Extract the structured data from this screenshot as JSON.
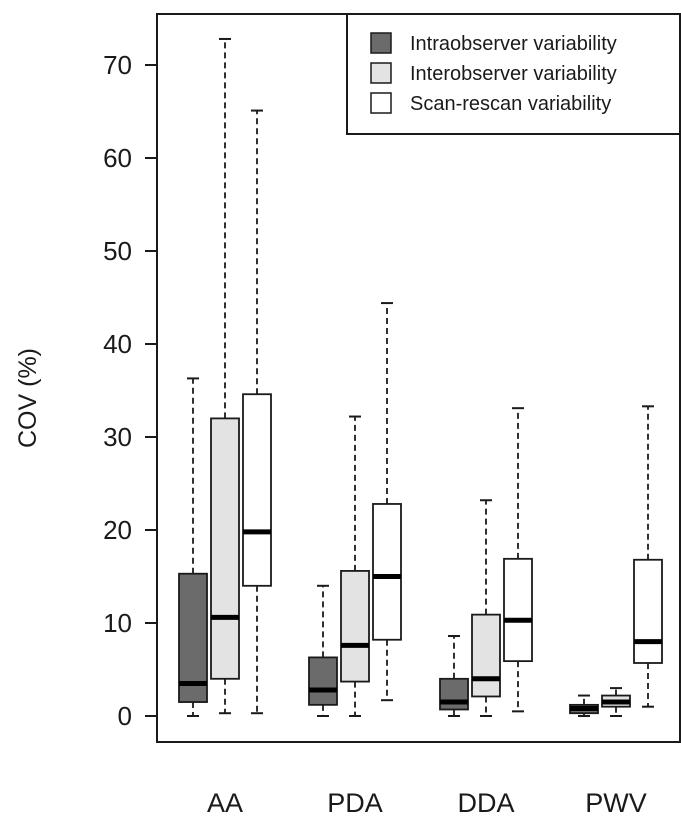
{
  "chart_data": {
    "type": "boxplot",
    "ylabel": "COV (%)",
    "ylim": [
      -2.5,
      75
    ],
    "yticks": [
      0,
      10,
      20,
      30,
      40,
      50,
      60,
      70
    ],
    "ytick_labels": [
      "0",
      "10",
      "20",
      "30",
      "40",
      "50",
      "60",
      "70"
    ],
    "categories": [
      "AA",
      "PDA",
      "DDA",
      "PWV"
    ],
    "legend_position": "top-right",
    "series": [
      {
        "name": "Intraobserver variability",
        "color": "#6b6b6b",
        "boxes": [
          {
            "min": 0,
            "q1": 1.5,
            "median": 3.5,
            "q3": 15.3,
            "max": 36.3
          },
          {
            "min": 0,
            "q1": 1.2,
            "median": 2.8,
            "q3": 6.3,
            "max": 14.0
          },
          {
            "min": 0,
            "q1": 0.7,
            "median": 1.5,
            "q3": 4.0,
            "max": 8.6
          },
          {
            "min": 0,
            "q1": 0.3,
            "median": 0.8,
            "q3": 1.2,
            "max": 2.2
          }
        ]
      },
      {
        "name": "Interobserver variability",
        "color": "#e3e3e3",
        "boxes": [
          {
            "min": 0.3,
            "q1": 4.0,
            "median": 10.6,
            "q3": 32.0,
            "max": 72.8
          },
          {
            "min": 0,
            "q1": 3.7,
            "median": 7.6,
            "q3": 15.6,
            "max": 32.2
          },
          {
            "min": 0,
            "q1": 2.1,
            "median": 4.0,
            "q3": 10.9,
            "max": 23.2
          },
          {
            "min": 0,
            "q1": 1.0,
            "median": 1.5,
            "q3": 2.2,
            "max": 3.0
          }
        ]
      },
      {
        "name": "Scan-rescan variability",
        "color": "#ffffff",
        "boxes": [
          {
            "min": 0.3,
            "q1": 14.0,
            "median": 19.8,
            "q3": 34.6,
            "max": 65.1
          },
          {
            "min": 1.7,
            "q1": 8.2,
            "median": 15.0,
            "q3": 22.8,
            "max": 44.4
          },
          {
            "min": 0.5,
            "q1": 5.9,
            "median": 10.3,
            "q3": 16.9,
            "max": 33.1
          },
          {
            "min": 1.0,
            "q1": 5.7,
            "median": 8.0,
            "q3": 16.8,
            "max": 33.3
          }
        ]
      }
    ]
  }
}
